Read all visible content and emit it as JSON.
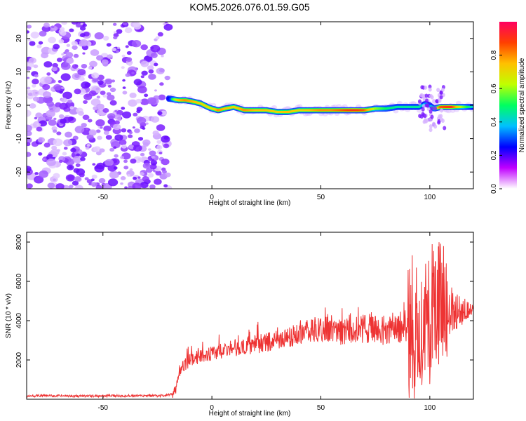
{
  "chart_data": [
    {
      "id": "spectrogram",
      "type": "heatmap",
      "title": "KOM5.2026.076.01.59.G05",
      "xlabel": "Height of straight line (km)",
      "ylabel": "Frequency (Hz)",
      "xlim": [
        -85,
        120
      ],
      "ylim": [
        -25,
        25
      ],
      "xticks": [
        -50,
        0,
        50,
        100
      ],
      "yticks": [
        -20,
        -10,
        0,
        10,
        20
      ],
      "noise_region": {
        "x_from": -85,
        "x_to": -20,
        "y_from": -25,
        "y_to": 25
      },
      "signal_track": {
        "x": [
          -20,
          -15,
          -12,
          -8,
          -5,
          -2,
          0,
          3,
          6,
          10,
          15,
          20,
          25,
          30,
          35,
          40,
          45,
          50,
          55,
          60,
          65,
          70,
          75,
          80,
          85,
          90,
          95,
          98,
          100,
          102,
          105,
          110,
          115,
          120
        ],
        "frequency": [
          2,
          1.5,
          1.5,
          1,
          0.5,
          -0.5,
          -1,
          -1.5,
          -1,
          -0.5,
          -1.5,
          -1.5,
          -1.5,
          -2,
          -2,
          -1.5,
          -1.5,
          -1.5,
          -1.5,
          -1.5,
          -1.5,
          -1.5,
          -1,
          -1,
          -0.5,
          -0.5,
          -0.5,
          0.5,
          0,
          -1,
          -0.5,
          -0.5,
          -0.5,
          -0.5
        ],
        "amplitude": [
          0.35,
          0.75,
          0.8,
          0.75,
          0.7,
          0.7,
          0.65,
          0.8,
          0.75,
          0.7,
          0.8,
          0.75,
          0.75,
          0.7,
          0.75,
          0.7,
          0.75,
          0.8,
          0.8,
          0.85,
          0.9,
          0.85,
          0.6,
          0.5,
          0.45,
          0.45,
          0.45,
          0.35,
          0.3,
          0.55,
          0.85,
          0.9,
          0.6,
          0.4
        ]
      },
      "colorbar": {
        "label": "Normalized spectral amplitude",
        "ticks": [
          "0.0",
          "0.2",
          "0.4",
          "0.6",
          "0.8"
        ],
        "range": [
          0,
          1
        ],
        "colors": [
          "#ffffff",
          "#c000ff",
          "#0000ff",
          "#00c0ff",
          "#00ff60",
          "#c0ff00",
          "#ffc000",
          "#ff4000",
          "#ff0060"
        ]
      }
    },
    {
      "id": "snr",
      "type": "line",
      "xlabel": "Height of straight line (km)",
      "ylabel": "SNR (10 * v/v)",
      "xlim": [
        -85,
        120
      ],
      "ylim": [
        0,
        8500
      ],
      "xticks": [
        -50,
        0,
        50,
        100
      ],
      "yticks": [
        2000,
        4000,
        6000,
        8000
      ],
      "line_color": "#ee3333",
      "series": [
        {
          "name": "SNR",
          "x": [
            -85,
            -80,
            -70,
            -60,
            -50,
            -40,
            -30,
            -22,
            -18,
            -16,
            -15,
            -12,
            -10,
            -5,
            0,
            5,
            10,
            15,
            20,
            25,
            30,
            35,
            40,
            45,
            50,
            55,
            60,
            65,
            70,
            75,
            80,
            85,
            90,
            93,
            96,
            98,
            100,
            102,
            104,
            106,
            108,
            110,
            115,
            120
          ],
          "y": [
            150,
            180,
            170,
            160,
            170,
            180,
            170,
            180,
            250,
            700,
            1400,
            1800,
            2000,
            2200,
            2300,
            2500,
            2600,
            2700,
            2800,
            2900,
            3000,
            3100,
            3300,
            3500,
            3500,
            3600,
            3400,
            3500,
            3600,
            3600,
            3500,
            3600,
            3800,
            3600,
            3900,
            4200,
            4500,
            3500,
            4600,
            4900,
            4700,
            4500,
            4500,
            4600
          ]
        }
      ]
    }
  ]
}
